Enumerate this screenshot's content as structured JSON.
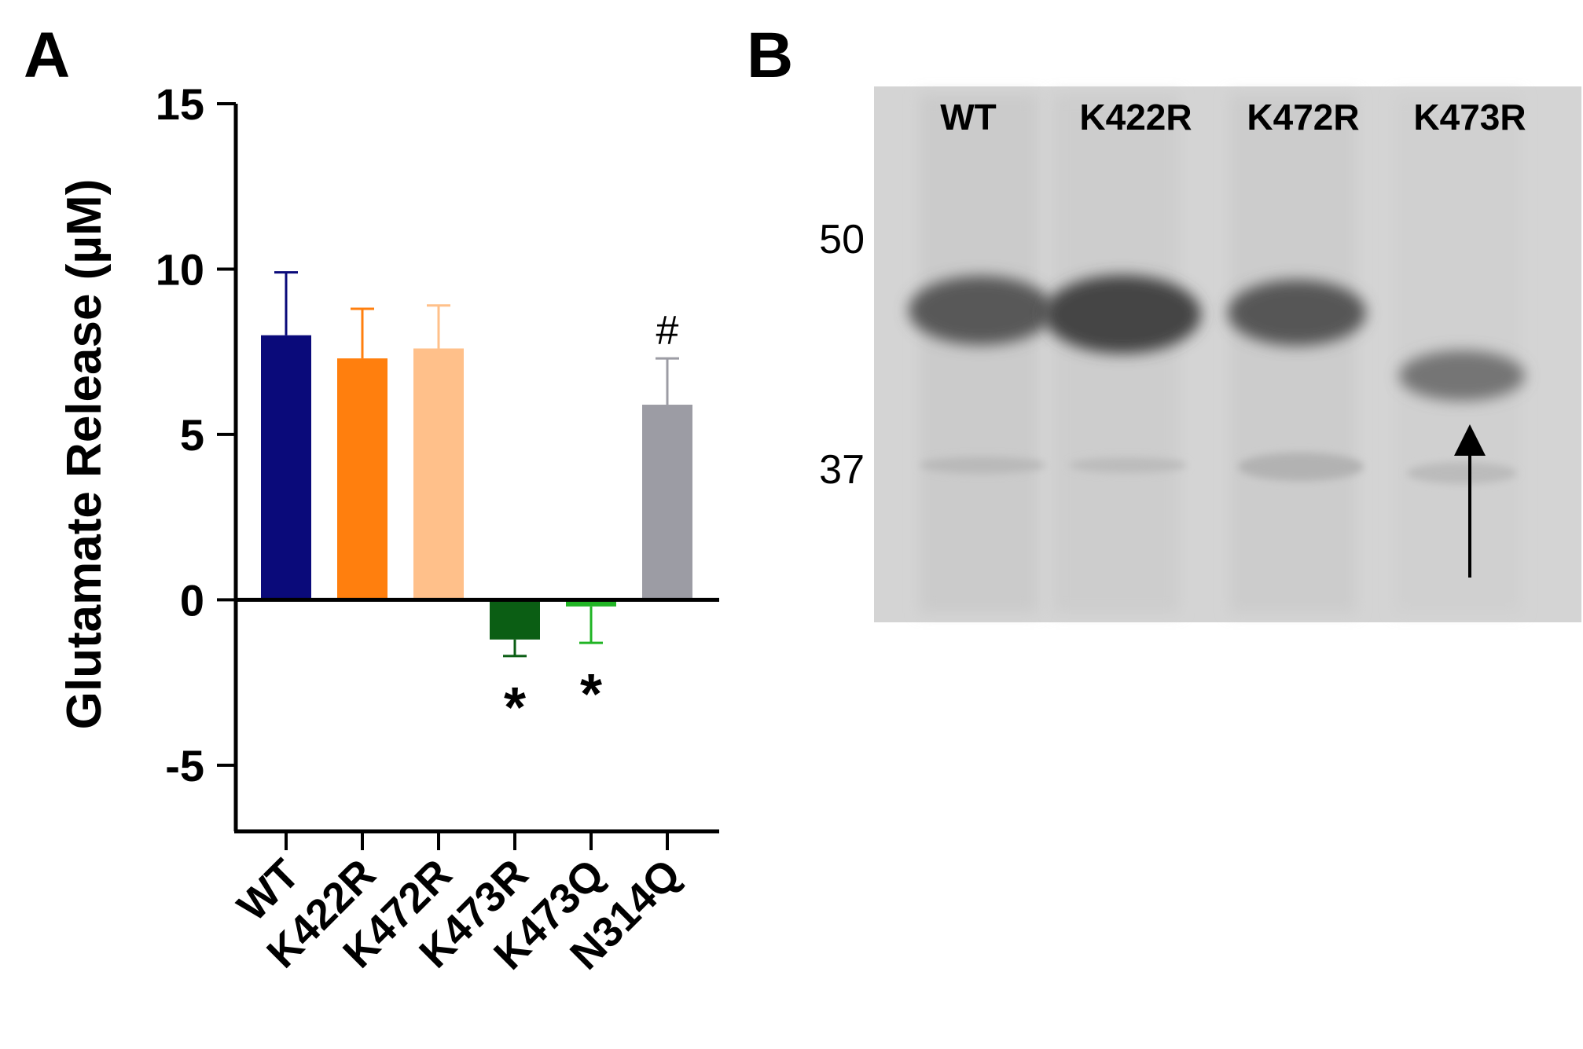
{
  "panel_a": {
    "letter": "A"
  },
  "panel_b": {
    "letter": "B",
    "lanes": [
      "WT",
      "K422R",
      "K472R",
      "K473R"
    ],
    "markers": [
      {
        "label": "50",
        "kda": 50
      },
      {
        "label": "37",
        "kda": 37
      }
    ],
    "arrow_lane": "K473R"
  },
  "chart_data": {
    "type": "bar",
    "title": "",
    "xlabel": "",
    "ylabel": "Glutamate Release (µM)",
    "categories": [
      "WT",
      "K422R",
      "K472R",
      "K473R",
      "K473Q",
      "N314Q"
    ],
    "values": [
      8.0,
      7.3,
      7.6,
      -1.2,
      -0.2,
      5.9
    ],
    "errors": [
      1.9,
      1.5,
      1.3,
      0.5,
      1.1,
      1.4
    ],
    "colors": [
      "#0a0a7a",
      "#ff7f0e",
      "#ffc08a",
      "#0b5e14",
      "#20b424",
      "#9c9ca4"
    ],
    "annotations": [
      "",
      "",
      "",
      "*",
      "*",
      "#"
    ],
    "ylim": [
      -7,
      15
    ],
    "yticks": [
      15,
      10,
      5,
      0,
      -5
    ],
    "grid": false,
    "legend": "none"
  }
}
